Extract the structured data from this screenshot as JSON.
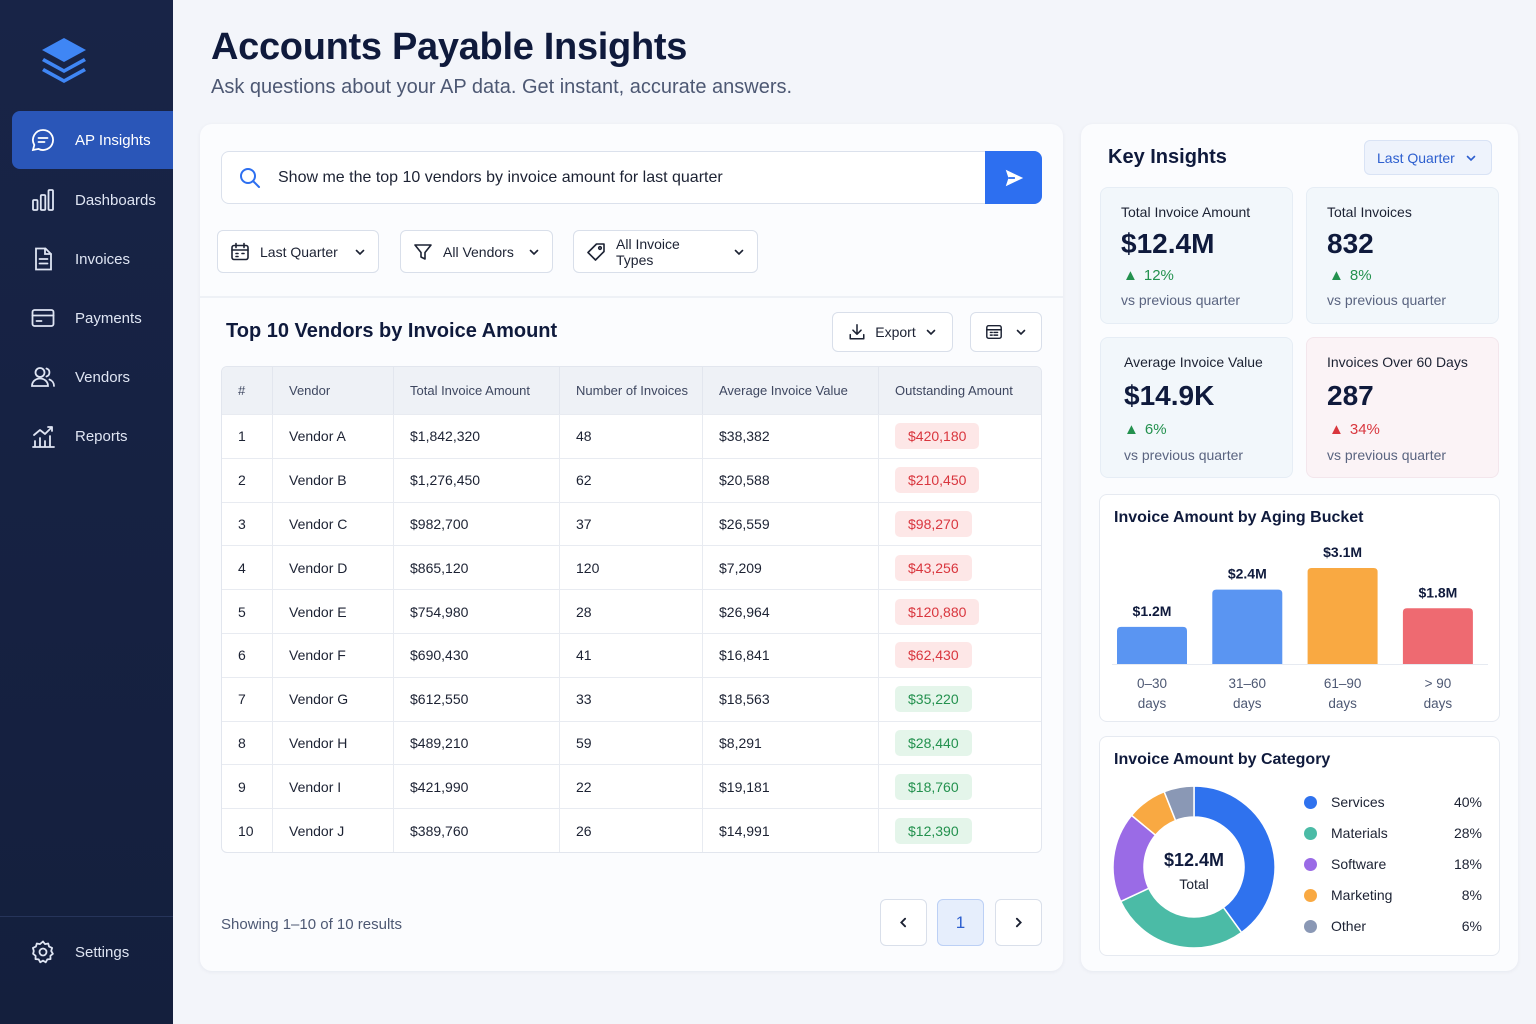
{
  "sidebar": {
    "items": [
      {
        "label": "AP Insights",
        "icon": "chat-icon"
      },
      {
        "label": "Dashboards",
        "icon": "bar-chart-icon"
      },
      {
        "label": "Invoices",
        "icon": "document-icon"
      },
      {
        "label": "Payments",
        "icon": "card-icon"
      },
      {
        "label": "Vendors",
        "icon": "users-icon"
      },
      {
        "label": "Reports",
        "icon": "reports-icon"
      }
    ],
    "settings_label": "Settings"
  },
  "header": {
    "title": "Accounts Payable Insights",
    "subtitle": "Ask questions about your AP data. Get instant, accurate answers."
  },
  "search": {
    "query": "Show me the top 10 vendors by invoice amount for last quarter"
  },
  "filters": {
    "period": "Last Quarter",
    "vendors": "All Vendors",
    "invoice_types": "All Invoice Types"
  },
  "table": {
    "title": "Top 10 Vendors by Invoice Amount",
    "export_label": "Export",
    "columns": [
      "#",
      "Vendor",
      "Total Invoice Amount",
      "Number of Invoices",
      "Average Invoice Value",
      "Outstanding Amount"
    ],
    "rows": [
      {
        "n": "1",
        "vendor": "Vendor A",
        "total": "$1,842,320",
        "count": "48",
        "avg": "$38,382",
        "outstanding": "$420,180",
        "status": "red"
      },
      {
        "n": "2",
        "vendor": "Vendor B",
        "total": "$1,276,450",
        "count": "62",
        "avg": "$20,588",
        "outstanding": "$210,450",
        "status": "red"
      },
      {
        "n": "3",
        "vendor": "Vendor C",
        "total": "$982,700",
        "count": "37",
        "avg": "$26,559",
        "outstanding": "$98,270",
        "status": "red"
      },
      {
        "n": "4",
        "vendor": "Vendor D",
        "total": "$865,120",
        "count": "120",
        "avg": "$7,209",
        "outstanding": "$43,256",
        "status": "red"
      },
      {
        "n": "5",
        "vendor": "Vendor E",
        "total": "$754,980",
        "count": "28",
        "avg": "$26,964",
        "outstanding": "$120,880",
        "status": "red"
      },
      {
        "n": "6",
        "vendor": "Vendor F",
        "total": "$690,430",
        "count": "41",
        "avg": "$16,841",
        "outstanding": "$62,430",
        "status": "red"
      },
      {
        "n": "7",
        "vendor": "Vendor G",
        "total": "$612,550",
        "count": "33",
        "avg": "$18,563",
        "outstanding": "$35,220",
        "status": "green"
      },
      {
        "n": "8",
        "vendor": "Vendor H",
        "total": "$489,210",
        "count": "59",
        "avg": "$8,291",
        "outstanding": "$28,440",
        "status": "green"
      },
      {
        "n": "9",
        "vendor": "Vendor I",
        "total": "$421,990",
        "count": "22",
        "avg": "$19,181",
        "outstanding": "$18,760",
        "status": "green"
      },
      {
        "n": "10",
        "vendor": "Vendor J",
        "total": "$389,760",
        "count": "26",
        "avg": "$14,991",
        "outstanding": "$12,390",
        "status": "green"
      }
    ],
    "showing": "Showing 1–10 of 10 results",
    "current_page": "1"
  },
  "insights": {
    "title": "Key Insights",
    "period": "Last Quarter",
    "kpis": [
      {
        "label": "Total Invoice Amount",
        "value": "$12.4M",
        "change": "12%",
        "direction": "up",
        "compare": "vs previous quarter"
      },
      {
        "label": "Total Invoices",
        "value": "832",
        "change": "8%",
        "direction": "up",
        "compare": "vs previous quarter"
      },
      {
        "label": "Average Invoice Value",
        "value": "$14.9K",
        "change": "6%",
        "direction": "up",
        "compare": "vs previous quarter"
      },
      {
        "label": "Invoices Over 60 Days",
        "value": "287",
        "change": "34%",
        "direction": "up-bad",
        "compare": "vs previous quarter"
      }
    ]
  },
  "chart_data": [
    {
      "type": "bar",
      "title": "Invoice Amount by Aging Bucket",
      "categories": [
        [
          "0–30",
          "days"
        ],
        [
          "31–60",
          "days"
        ],
        [
          "61–90",
          "days"
        ],
        [
          "> 90",
          "days"
        ]
      ],
      "values": [
        1.2,
        2.4,
        3.1,
        1.8
      ],
      "value_labels": [
        "$1.2M",
        "$2.4M",
        "$3.1M",
        "$1.8M"
      ],
      "colors": [
        "#5a95f2",
        "#5a95f2",
        "#f9a942",
        "#ee6a71"
      ]
    },
    {
      "type": "pie",
      "title": "Invoice Amount by Category",
      "center_value": "$12.4M",
      "center_label": "Total",
      "slices": [
        {
          "name": "Services",
          "value": 40,
          "label": "40%",
          "color": "#2f72ee"
        },
        {
          "name": "Materials",
          "value": 28,
          "label": "28%",
          "color": "#4bbba6"
        },
        {
          "name": "Software",
          "value": 18,
          "label": "18%",
          "color": "#9a6be6"
        },
        {
          "name": "Marketing",
          "value": 8,
          "label": "8%",
          "color": "#f9a942"
        },
        {
          "name": "Other",
          "value": 6,
          "label": "6%",
          "color": "#8a98b5"
        }
      ]
    }
  ]
}
